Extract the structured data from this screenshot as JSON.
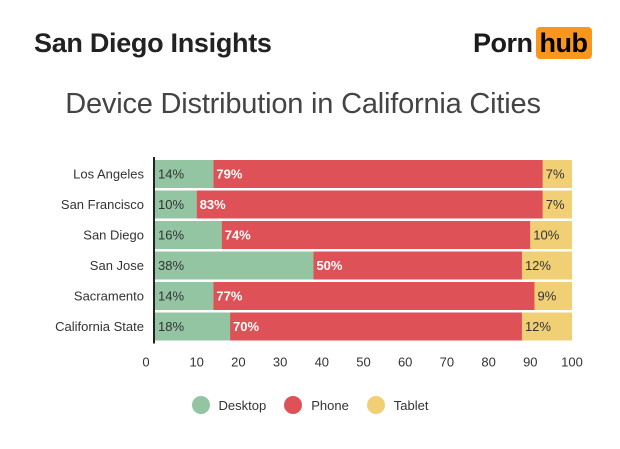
{
  "header": {
    "title": "San Diego Insights"
  },
  "logo": {
    "left_text": "Porn",
    "right_text": "hub",
    "accent_color": "#f7971d"
  },
  "colors": {
    "desktop": "#93c5a3",
    "phone": "#de5257",
    "tablet": "#f1cf74"
  },
  "chart_data": {
    "type": "bar",
    "orientation": "horizontal",
    "stacked": true,
    "title": "Device Distribution in California Cities",
    "categories": [
      "Los Angeles",
      "San Francisco",
      "San Diego",
      "San Jose",
      "Sacramento",
      "California State"
    ],
    "series": [
      {
        "name": "Desktop",
        "values": [
          14,
          10,
          16,
          38,
          14,
          18
        ],
        "labels": [
          "14%",
          "10%",
          "16%",
          "38%",
          "14%",
          "18%"
        ]
      },
      {
        "name": "Phone",
        "values": [
          79,
          83,
          74,
          50,
          77,
          70
        ],
        "labels": [
          "79%",
          "83%",
          "74%",
          "50%",
          "77%",
          "70%"
        ]
      },
      {
        "name": "Tablet",
        "values": [
          7,
          7,
          10,
          12,
          9,
          12
        ],
        "labels": [
          "7%",
          "7%",
          "10%",
          "12%",
          "9%",
          "12%"
        ]
      }
    ],
    "xlim": [
      0,
      100
    ],
    "xticks": [
      "0",
      "10",
      "20",
      "30",
      "40",
      "50",
      "60",
      "70",
      "80",
      "90",
      "100"
    ],
    "grid": false,
    "legend_position": "bottom"
  }
}
